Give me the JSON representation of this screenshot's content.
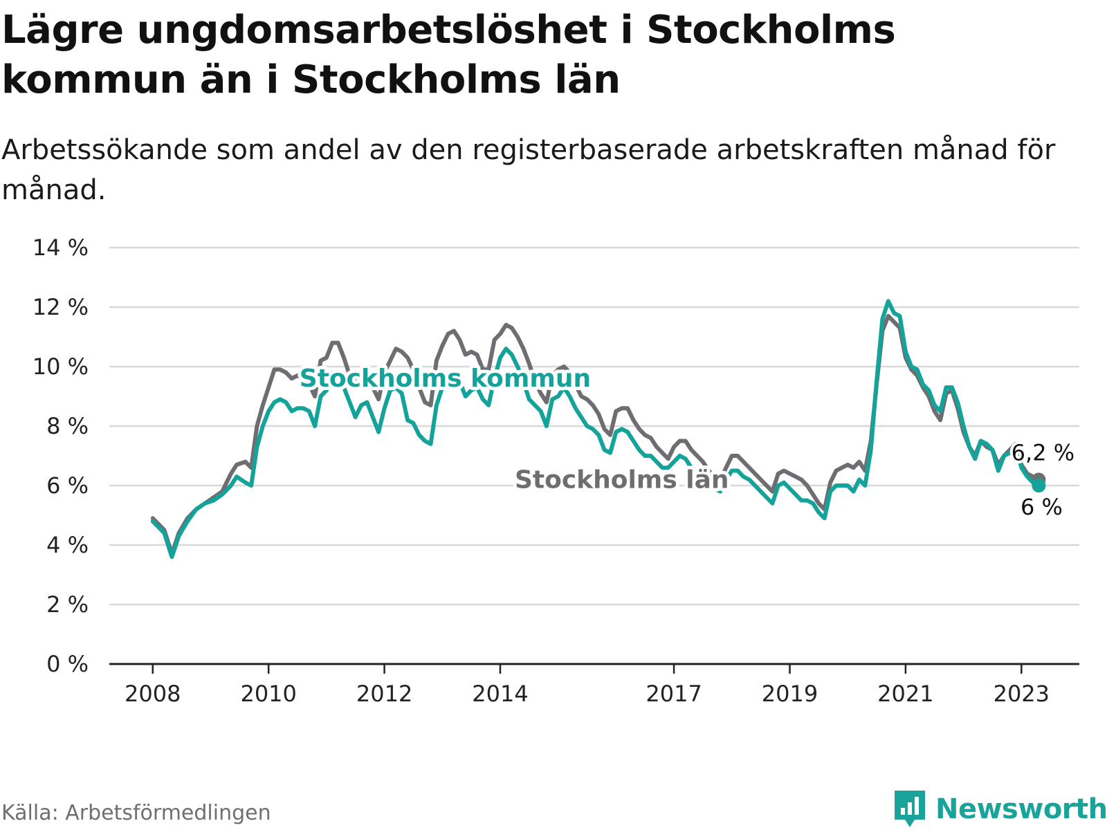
{
  "title": "Lägre ungdomsarbetslöshet i Stockholms kommun än i Stockholms län",
  "subtitle": "Arbetssökande som andel av den registerbaserade arbetskraften månad för månad.",
  "source": "Källa: Arbetsförmedlingen",
  "brand": "Newsworthy",
  "colors": {
    "kommun": "#14a39a",
    "lan": "#6d6d72",
    "grid": "#d9d9d9",
    "axis": "#222222"
  },
  "chart_data": {
    "type": "line",
    "title": "Lägre ungdomsarbetslöshet i Stockholms kommun än i Stockholms län",
    "xlabel": "",
    "ylabel": "",
    "x_tick_labels": [
      "2008",
      "2010",
      "2012",
      "2014",
      "2017",
      "2019",
      "2021",
      "2023"
    ],
    "x_tick_values": [
      2008,
      2010,
      2012,
      2014,
      2017,
      2019,
      2021,
      2023
    ],
    "y_ticks": [
      0,
      2,
      4,
      6,
      8,
      10,
      12,
      14
    ],
    "y_tick_labels": [
      "0 %",
      "2 %",
      "4 %",
      "6 %",
      "8 %",
      "10 %",
      "12 %",
      "14 %"
    ],
    "ylim": [
      0,
      14
    ],
    "xlim": [
      2007.25,
      2024.0
    ],
    "grid": true,
    "series": [
      {
        "name": "Stockholms län",
        "color": "#6d6d72",
        "label_anchor": [
          2016.1,
          6.2
        ],
        "end_label": "6,2 %",
        "points": [
          [
            2008.0,
            4.9
          ],
          [
            2008.2,
            4.5
          ],
          [
            2008.33,
            3.7
          ],
          [
            2008.45,
            4.4
          ],
          [
            2008.6,
            4.9
          ],
          [
            2008.75,
            5.2
          ],
          [
            2008.9,
            5.4
          ],
          [
            2009.05,
            5.6
          ],
          [
            2009.2,
            5.8
          ],
          [
            2009.35,
            6.4
          ],
          [
            2009.45,
            6.7
          ],
          [
            2009.6,
            6.8
          ],
          [
            2009.7,
            6.6
          ],
          [
            2009.8,
            8.0
          ],
          [
            2009.9,
            8.7
          ],
          [
            2010.0,
            9.3
          ],
          [
            2010.1,
            9.9
          ],
          [
            2010.2,
            9.9
          ],
          [
            2010.3,
            9.8
          ],
          [
            2010.4,
            9.6
          ],
          [
            2010.5,
            9.7
          ],
          [
            2010.6,
            9.6
          ],
          [
            2010.7,
            9.4
          ],
          [
            2010.8,
            9.0
          ],
          [
            2010.9,
            10.2
          ],
          [
            2011.0,
            10.3
          ],
          [
            2011.1,
            10.8
          ],
          [
            2011.2,
            10.8
          ],
          [
            2011.3,
            10.3
          ],
          [
            2011.4,
            9.7
          ],
          [
            2011.5,
            9.6
          ],
          [
            2011.6,
            9.8
          ],
          [
            2011.7,
            9.6
          ],
          [
            2011.8,
            9.3
          ],
          [
            2011.9,
            8.9
          ],
          [
            2012.0,
            9.8
          ],
          [
            2012.1,
            10.2
          ],
          [
            2012.2,
            10.6
          ],
          [
            2012.3,
            10.5
          ],
          [
            2012.4,
            10.3
          ],
          [
            2012.5,
            9.9
          ],
          [
            2012.6,
            9.3
          ],
          [
            2012.7,
            8.8
          ],
          [
            2012.8,
            8.7
          ],
          [
            2012.9,
            10.2
          ],
          [
            2013.0,
            10.7
          ],
          [
            2013.1,
            11.1
          ],
          [
            2013.2,
            11.2
          ],
          [
            2013.3,
            10.9
          ],
          [
            2013.4,
            10.4
          ],
          [
            2013.5,
            10.5
          ],
          [
            2013.6,
            10.4
          ],
          [
            2013.7,
            9.9
          ],
          [
            2013.8,
            9.9
          ],
          [
            2013.9,
            10.9
          ],
          [
            2014.0,
            11.1
          ],
          [
            2014.1,
            11.4
          ],
          [
            2014.2,
            11.3
          ],
          [
            2014.3,
            11.0
          ],
          [
            2014.4,
            10.6
          ],
          [
            2014.5,
            10.1
          ],
          [
            2014.6,
            9.5
          ],
          [
            2014.7,
            9.1
          ],
          [
            2014.8,
            8.8
          ],
          [
            2014.9,
            9.7
          ],
          [
            2015.0,
            9.9
          ],
          [
            2015.1,
            10.0
          ],
          [
            2015.2,
            9.8
          ],
          [
            2015.3,
            9.4
          ],
          [
            2015.4,
            9.0
          ],
          [
            2015.5,
            8.9
          ],
          [
            2015.6,
            8.7
          ],
          [
            2015.7,
            8.4
          ],
          [
            2015.8,
            7.9
          ],
          [
            2015.9,
            7.7
          ],
          [
            2016.0,
            8.5
          ],
          [
            2016.1,
            8.6
          ],
          [
            2016.2,
            8.6
          ],
          [
            2016.3,
            8.2
          ],
          [
            2016.4,
            7.9
          ],
          [
            2016.5,
            7.7
          ],
          [
            2016.6,
            7.6
          ],
          [
            2016.7,
            7.3
          ],
          [
            2016.8,
            7.1
          ],
          [
            2016.9,
            6.9
          ],
          [
            2017.0,
            7.3
          ],
          [
            2017.1,
            7.5
          ],
          [
            2017.2,
            7.5
          ],
          [
            2017.3,
            7.2
          ],
          [
            2017.4,
            7.0
          ],
          [
            2017.5,
            6.8
          ],
          [
            2017.6,
            6.5
          ],
          [
            2017.7,
            6.3
          ],
          [
            2017.8,
            6.2
          ],
          [
            2017.9,
            6.6
          ],
          [
            2018.0,
            7.0
          ],
          [
            2018.1,
            7.0
          ],
          [
            2018.2,
            6.8
          ],
          [
            2018.3,
            6.6
          ],
          [
            2018.4,
            6.4
          ],
          [
            2018.5,
            6.2
          ],
          [
            2018.6,
            6.0
          ],
          [
            2018.7,
            5.8
          ],
          [
            2018.8,
            6.4
          ],
          [
            2018.9,
            6.5
          ],
          [
            2019.0,
            6.4
          ],
          [
            2019.1,
            6.3
          ],
          [
            2019.2,
            6.2
          ],
          [
            2019.3,
            6.0
          ],
          [
            2019.4,
            5.7
          ],
          [
            2019.5,
            5.4
          ],
          [
            2019.6,
            5.2
          ],
          [
            2019.7,
            6.1
          ],
          [
            2019.8,
            6.5
          ],
          [
            2019.9,
            6.6
          ],
          [
            2020.0,
            6.7
          ],
          [
            2020.1,
            6.6
          ],
          [
            2020.2,
            6.8
          ],
          [
            2020.3,
            6.5
          ],
          [
            2020.4,
            7.5
          ],
          [
            2020.5,
            9.4
          ],
          [
            2020.6,
            11.2
          ],
          [
            2020.7,
            11.7
          ],
          [
            2020.8,
            11.5
          ],
          [
            2020.9,
            11.3
          ],
          [
            2021.0,
            10.3
          ],
          [
            2021.1,
            9.9
          ],
          [
            2021.2,
            9.7
          ],
          [
            2021.3,
            9.3
          ],
          [
            2021.4,
            9.0
          ],
          [
            2021.5,
            8.5
          ],
          [
            2021.6,
            8.2
          ],
          [
            2021.7,
            9.1
          ],
          [
            2021.8,
            9.2
          ],
          [
            2021.9,
            8.6
          ],
          [
            2022.0,
            7.8
          ],
          [
            2022.1,
            7.3
          ],
          [
            2022.2,
            7.0
          ],
          [
            2022.3,
            7.5
          ],
          [
            2022.4,
            7.3
          ],
          [
            2022.5,
            7.2
          ],
          [
            2022.6,
            6.7
          ],
          [
            2022.7,
            7.0
          ],
          [
            2022.8,
            7.2
          ],
          [
            2022.9,
            7.4
          ],
          [
            2023.0,
            6.7
          ],
          [
            2023.1,
            6.4
          ],
          [
            2023.2,
            6.3
          ],
          [
            2023.3,
            6.2
          ]
        ]
      },
      {
        "name": "Stockholms kommun",
        "color": "#14a39a",
        "label_anchor": [
          2013.05,
          9.6
        ],
        "end_label": "6 %",
        "points": [
          [
            2008.0,
            4.8
          ],
          [
            2008.2,
            4.4
          ],
          [
            2008.33,
            3.6
          ],
          [
            2008.45,
            4.3
          ],
          [
            2008.6,
            4.8
          ],
          [
            2008.75,
            5.2
          ],
          [
            2008.9,
            5.4
          ],
          [
            2009.05,
            5.5
          ],
          [
            2009.2,
            5.7
          ],
          [
            2009.35,
            6.0
          ],
          [
            2009.45,
            6.3
          ],
          [
            2009.6,
            6.1
          ],
          [
            2009.7,
            6.0
          ],
          [
            2009.8,
            7.3
          ],
          [
            2009.9,
            8.0
          ],
          [
            2010.0,
            8.5
          ],
          [
            2010.1,
            8.8
          ],
          [
            2010.2,
            8.9
          ],
          [
            2010.3,
            8.8
          ],
          [
            2010.4,
            8.5
          ],
          [
            2010.5,
            8.6
          ],
          [
            2010.6,
            8.6
          ],
          [
            2010.7,
            8.5
          ],
          [
            2010.8,
            8.0
          ],
          [
            2010.9,
            9.0
          ],
          [
            2011.0,
            9.2
          ],
          [
            2011.1,
            9.8
          ],
          [
            2011.2,
            9.8
          ],
          [
            2011.3,
            9.3
          ],
          [
            2011.4,
            8.8
          ],
          [
            2011.5,
            8.3
          ],
          [
            2011.6,
            8.7
          ],
          [
            2011.7,
            8.8
          ],
          [
            2011.8,
            8.3
          ],
          [
            2011.9,
            7.8
          ],
          [
            2012.0,
            8.6
          ],
          [
            2012.1,
            9.2
          ],
          [
            2012.2,
            9.3
          ],
          [
            2012.3,
            9.1
          ],
          [
            2012.4,
            8.2
          ],
          [
            2012.5,
            8.1
          ],
          [
            2012.6,
            7.7
          ],
          [
            2012.7,
            7.5
          ],
          [
            2012.8,
            7.4
          ],
          [
            2012.9,
            8.7
          ],
          [
            2013.0,
            9.3
          ],
          [
            2013.1,
            9.6
          ],
          [
            2013.2,
            9.6
          ],
          [
            2013.3,
            9.5
          ],
          [
            2013.4,
            9.0
          ],
          [
            2013.5,
            9.2
          ],
          [
            2013.6,
            9.3
          ],
          [
            2013.7,
            8.9
          ],
          [
            2013.8,
            8.7
          ],
          [
            2013.9,
            9.6
          ],
          [
            2014.0,
            10.3
          ],
          [
            2014.1,
            10.6
          ],
          [
            2014.2,
            10.4
          ],
          [
            2014.3,
            10.0
          ],
          [
            2014.4,
            9.5
          ],
          [
            2014.5,
            8.9
          ],
          [
            2014.6,
            8.7
          ],
          [
            2014.7,
            8.5
          ],
          [
            2014.8,
            8.0
          ],
          [
            2014.9,
            8.9
          ],
          [
            2015.0,
            9.0
          ],
          [
            2015.1,
            9.3
          ],
          [
            2015.2,
            9.0
          ],
          [
            2015.3,
            8.6
          ],
          [
            2015.4,
            8.3
          ],
          [
            2015.5,
            8.0
          ],
          [
            2015.6,
            7.9
          ],
          [
            2015.7,
            7.7
          ],
          [
            2015.8,
            7.2
          ],
          [
            2015.9,
            7.1
          ],
          [
            2016.0,
            7.8
          ],
          [
            2016.1,
            7.9
          ],
          [
            2016.2,
            7.8
          ],
          [
            2016.3,
            7.5
          ],
          [
            2016.4,
            7.2
          ],
          [
            2016.5,
            7.0
          ],
          [
            2016.6,
            7.0
          ],
          [
            2016.7,
            6.8
          ],
          [
            2016.8,
            6.6
          ],
          [
            2016.9,
            6.6
          ],
          [
            2017.0,
            6.8
          ],
          [
            2017.1,
            7.0
          ],
          [
            2017.2,
            6.9
          ],
          [
            2017.3,
            6.6
          ],
          [
            2017.4,
            6.4
          ],
          [
            2017.5,
            6.3
          ],
          [
            2017.6,
            6.0
          ],
          [
            2017.7,
            5.9
          ],
          [
            2017.8,
            5.8
          ],
          [
            2017.9,
            6.2
          ],
          [
            2018.0,
            6.5
          ],
          [
            2018.1,
            6.5
          ],
          [
            2018.2,
            6.3
          ],
          [
            2018.3,
            6.2
          ],
          [
            2018.4,
            6.0
          ],
          [
            2018.5,
            5.8
          ],
          [
            2018.6,
            5.6
          ],
          [
            2018.7,
            5.4
          ],
          [
            2018.8,
            6.0
          ],
          [
            2018.9,
            6.1
          ],
          [
            2019.0,
            5.9
          ],
          [
            2019.1,
            5.7
          ],
          [
            2019.2,
            5.5
          ],
          [
            2019.3,
            5.5
          ],
          [
            2019.4,
            5.4
          ],
          [
            2019.5,
            5.1
          ],
          [
            2019.6,
            4.9
          ],
          [
            2019.7,
            5.8
          ],
          [
            2019.8,
            6.0
          ],
          [
            2019.9,
            6.0
          ],
          [
            2020.0,
            6.0
          ],
          [
            2020.1,
            5.8
          ],
          [
            2020.2,
            6.2
          ],
          [
            2020.3,
            6.0
          ],
          [
            2020.4,
            7.2
          ],
          [
            2020.5,
            9.5
          ],
          [
            2020.6,
            11.6
          ],
          [
            2020.7,
            12.2
          ],
          [
            2020.8,
            11.8
          ],
          [
            2020.9,
            11.7
          ],
          [
            2021.0,
            10.5
          ],
          [
            2021.1,
            10.0
          ],
          [
            2021.2,
            9.9
          ],
          [
            2021.3,
            9.4
          ],
          [
            2021.4,
            9.2
          ],
          [
            2021.5,
            8.7
          ],
          [
            2021.6,
            8.5
          ],
          [
            2021.7,
            9.3
          ],
          [
            2021.8,
            9.3
          ],
          [
            2021.9,
            8.8
          ],
          [
            2022.0,
            8.0
          ],
          [
            2022.1,
            7.3
          ],
          [
            2022.2,
            6.9
          ],
          [
            2022.3,
            7.5
          ],
          [
            2022.4,
            7.4
          ],
          [
            2022.5,
            7.2
          ],
          [
            2022.6,
            6.5
          ],
          [
            2022.7,
            7.0
          ],
          [
            2022.8,
            7.1
          ],
          [
            2022.9,
            7.4
          ],
          [
            2023.0,
            6.6
          ],
          [
            2023.1,
            6.3
          ],
          [
            2023.2,
            6.1
          ],
          [
            2023.3,
            6.0
          ]
        ]
      }
    ]
  }
}
